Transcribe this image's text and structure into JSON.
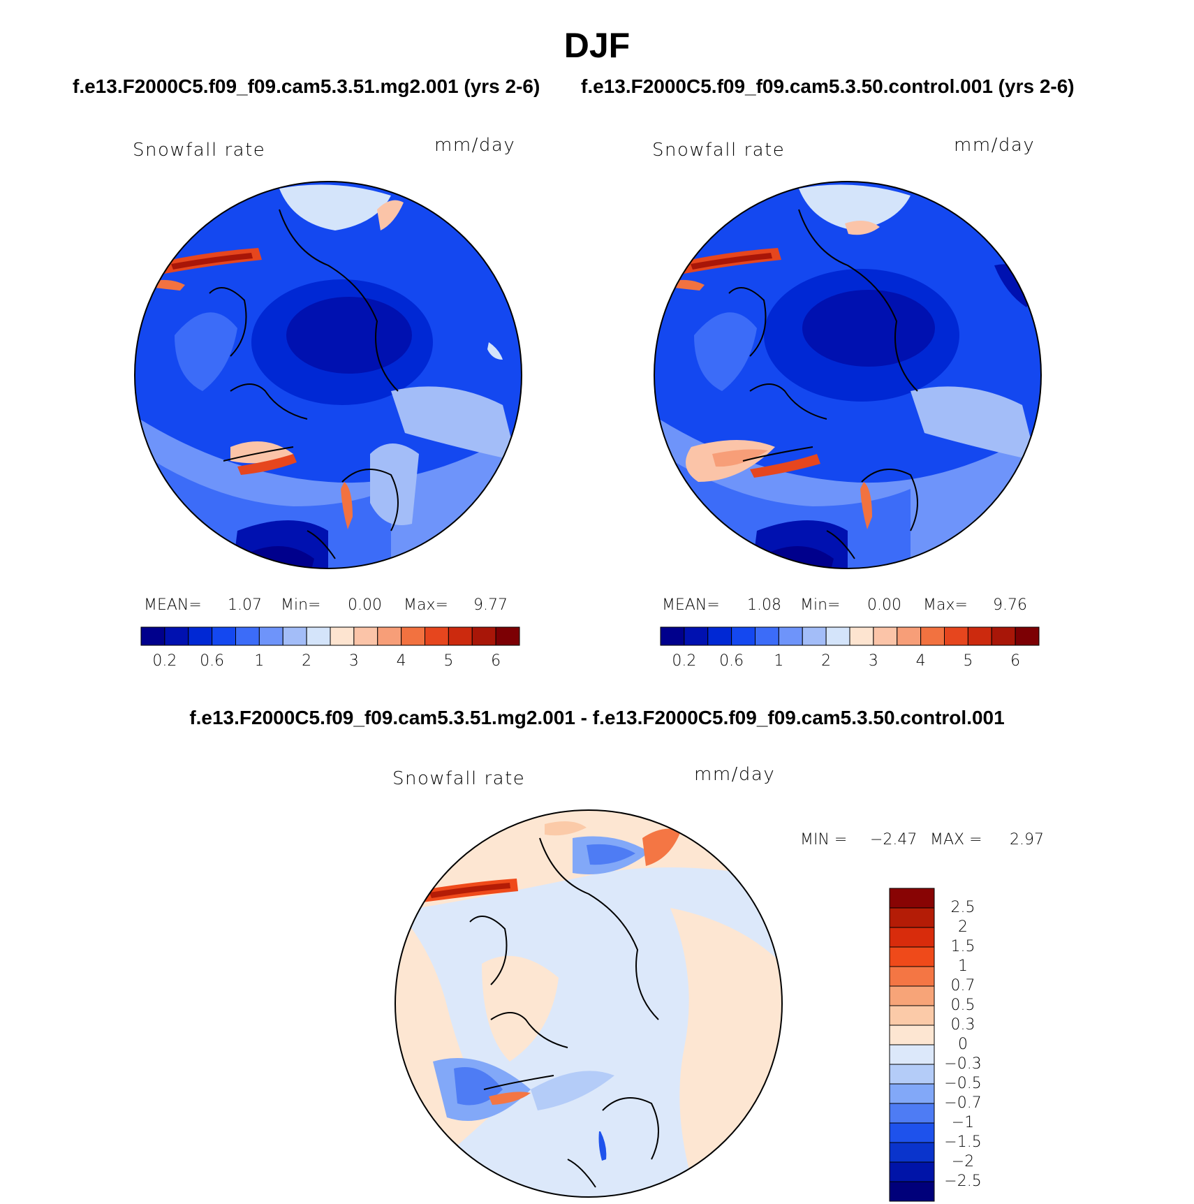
{
  "title": "DJF",
  "case1_title": "f.e13.F2000C5.f09_f09.cam5.3.51.mg2.001 (yrs 2-6)",
  "case2_title": "f.e13.F2000C5.f09_f09.cam5.3.50.control.001 (yrs 2-6)",
  "diff_title": "f.e13.F2000C5.f09_f09.cam5.3.51.mg2.001 - f.e13.F2000C5.f09_f09.cam5.3.50.control.001",
  "panels": [
    {
      "variable": "Snowfall rate",
      "units": "mm/day",
      "mean_label": "MEAN=",
      "mean": "1.07",
      "min_label": "Min=",
      "min": "0.00",
      "max_label": "Max=",
      "max": "9.77"
    },
    {
      "variable": "Snowfall rate",
      "units": "mm/day",
      "mean_label": "MEAN=",
      "mean": "1.08",
      "min_label": "Min=",
      "min": "0.00",
      "max_label": "Max=",
      "max": "9.76"
    }
  ],
  "diff_panel": {
    "variable": "Snowfall rate",
    "units": "mm/day",
    "min_label": "MIN =",
    "min": "−2.47",
    "max_label": "MAX =",
    "max": "2.97"
  },
  "colorbar_main": {
    "colors": [
      "#00008c",
      "#0011b0",
      "#0028d4",
      "#1448f0",
      "#3c6cf8",
      "#6e94fa",
      "#a3bdf8",
      "#d4e4fa",
      "#fde4d0",
      "#fbc4a8",
      "#f79e78",
      "#f27240",
      "#e6461e",
      "#cc2a0e",
      "#a81608",
      "#7c0004"
    ],
    "tick_labels": [
      "0.2",
      "0.6",
      "1",
      "2",
      "3",
      "4",
      "5",
      "6"
    ]
  },
  "colorbar_diff": {
    "colors": [
      "#00007a",
      "#0014a8",
      "#0a34cc",
      "#1e52ec",
      "#4e7cf4",
      "#82a8f8",
      "#b4ccf8",
      "#dce8fa",
      "#fde6d2",
      "#fbcaa8",
      "#f7a478",
      "#f47644",
      "#ef4a1a",
      "#d82c0c",
      "#b41c06",
      "#880404"
    ],
    "tick_labels": [
      "−2.5",
      "−2",
      "−1.5",
      "−1",
      "−0.7",
      "−0.5",
      "−0.3",
      "0",
      "0.3",
      "0.5",
      "0.7",
      "1",
      "1.5",
      "2",
      "2.5"
    ]
  }
}
